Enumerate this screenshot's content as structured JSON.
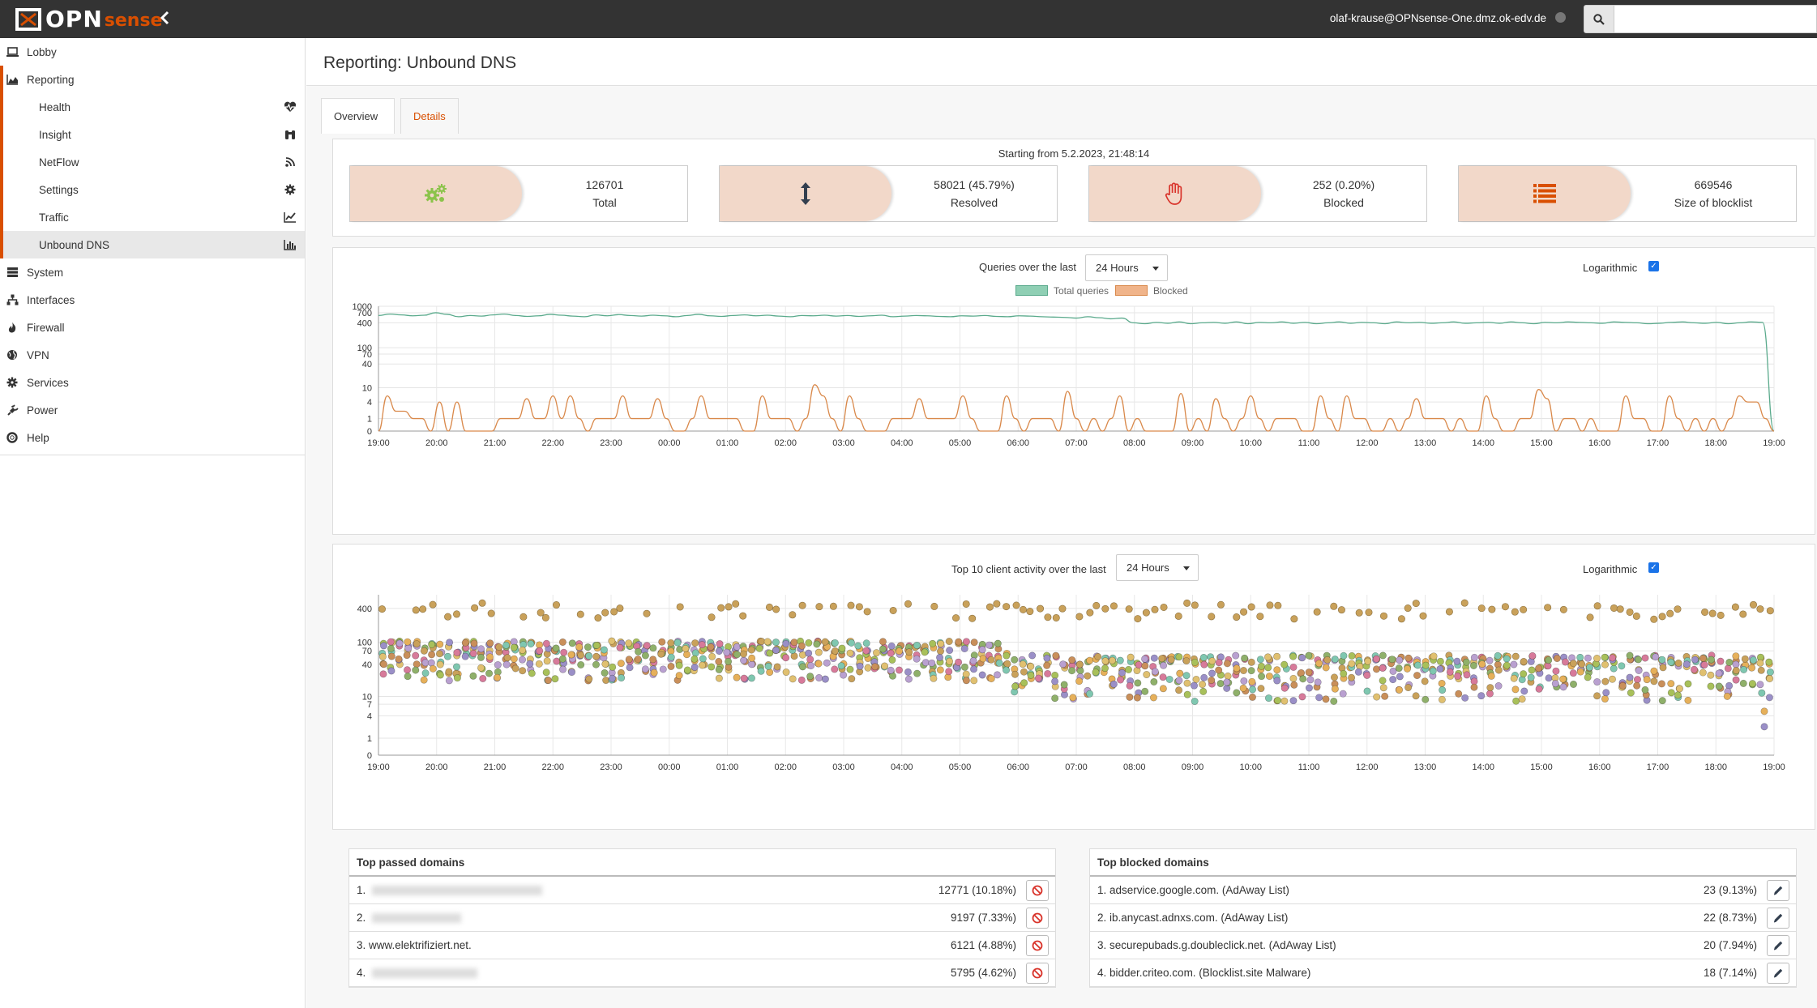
{
  "topbar": {
    "logo_opn": "OPN",
    "logo_sense": "sense",
    "user": "olaf-krause@OPNsense-One.dmz.ok-edv.de",
    "search_placeholder": ""
  },
  "sidebar": {
    "items": [
      {
        "label": "Lobby",
        "icon": "laptop-icon"
      },
      {
        "label": "Reporting",
        "icon": "area-chart-icon"
      },
      {
        "label": "System",
        "icon": "server-icon"
      },
      {
        "label": "Interfaces",
        "icon": "sitemap-icon"
      },
      {
        "label": "Firewall",
        "icon": "fire-icon"
      },
      {
        "label": "VPN",
        "icon": "globe-icon"
      },
      {
        "label": "Services",
        "icon": "cog-icon"
      },
      {
        "label": "Power",
        "icon": "plug-icon"
      },
      {
        "label": "Help",
        "icon": "life-ring-icon"
      }
    ],
    "reporting_sub": [
      {
        "label": "Health",
        "icon": "heartbeat-icon"
      },
      {
        "label": "Insight",
        "icon": "binoculars-icon"
      },
      {
        "label": "NetFlow",
        "icon": "rss-icon"
      },
      {
        "label": "Settings",
        "icon": "gear-icon"
      },
      {
        "label": "Traffic",
        "icon": "line-chart-icon"
      },
      {
        "label": "Unbound DNS",
        "icon": "bar-chart-icon"
      }
    ]
  },
  "page": {
    "title": "Reporting: Unbound DNS",
    "tabs": {
      "overview": "Overview",
      "details": "Details"
    }
  },
  "stats": {
    "starting_from": "Starting from 5.2.2023, 21:48:14",
    "boxes": [
      {
        "value": "126701",
        "label": "Total",
        "icon": "cogs-icon",
        "icon_color": "#8bc34a"
      },
      {
        "value": "58021 (45.79%)",
        "label": "Resolved",
        "icon": "arrows-v-icon",
        "icon_color": "#333f4f"
      },
      {
        "value": "252 (0.20%)",
        "label": "Blocked",
        "icon": "hand-stop-icon",
        "icon_color": "#d9342b"
      },
      {
        "value": "669546",
        "label": "Size of blocklist",
        "icon": "list-icon",
        "icon_color": "#d94f00"
      }
    ]
  },
  "queries_chart": {
    "label": "Queries over the last",
    "period": "24 Hours",
    "log_label": "Logarithmic",
    "legend": [
      {
        "name": "Total queries",
        "color": "#8fcfb4"
      },
      {
        "name": "Blocked",
        "color": "#f0b48a"
      }
    ]
  },
  "clients_chart": {
    "label": "Top 10 client activity over the last",
    "period": "24 Hours",
    "log_label": "Logarithmic"
  },
  "chart_data": [
    {
      "type": "line",
      "x_ticks": [
        "19:00",
        "20:00",
        "21:00",
        "22:00",
        "23:00",
        "00:00",
        "01:00",
        "02:00",
        "03:00",
        "04:00",
        "05:00",
        "06:00",
        "07:00",
        "08:00",
        "09:00",
        "10:00",
        "11:00",
        "12:00",
        "13:00",
        "14:00",
        "15:00",
        "16:00",
        "17:00",
        "18:00",
        "19:00"
      ],
      "y_ticks": [
        "0",
        "1",
        "4",
        "10",
        "40",
        "70",
        "100",
        "400",
        "700",
        "1000"
      ],
      "y_scale": "log",
      "series": [
        {
          "name": "Total queries",
          "color": "#5aaa8c",
          "values": [
            600,
            650,
            620,
            590,
            610,
            700,
            640,
            560,
            600,
            580,
            620,
            650,
            600,
            570,
            590,
            640,
            610,
            580,
            560,
            620,
            590,
            630,
            600,
            580,
            610,
            590,
            560,
            600,
            640,
            590,
            570,
            600,
            620,
            590,
            610,
            580,
            560,
            600,
            590,
            610,
            580,
            600,
            570,
            590,
            610,
            560,
            580,
            600,
            590,
            570,
            560,
            590,
            580,
            600,
            570,
            560,
            590,
            580,
            560,
            550,
            540,
            520,
            560,
            530,
            500,
            520,
            400,
            380,
            410,
            390,
            420,
            380,
            400,
            410,
            390,
            420,
            380,
            410,
            400,
            420,
            390,
            410,
            380,
            400,
            420,
            390,
            410,
            400,
            380,
            420,
            400,
            410,
            390,
            400,
            420,
            390,
            400,
            410,
            390,
            420,
            400,
            380,
            410,
            400,
            420,
            410,
            400,
            390,
            420,
            410,
            400,
            380,
            390,
            410,
            420,
            400,
            390,
            410,
            380,
            400,
            420,
            410,
            0
          ]
        },
        {
          "name": "Blocked",
          "color": "#d9894b",
          "values": [
            0,
            6,
            2,
            2,
            1,
            1,
            0,
            4,
            0,
            4,
            0,
            0,
            0,
            0,
            1,
            1,
            1,
            5,
            1,
            1,
            6,
            1,
            6,
            1,
            0,
            1,
            1,
            1,
            6,
            1,
            1,
            1,
            5,
            1,
            0,
            0,
            1,
            6,
            1,
            1,
            1,
            1,
            0,
            0,
            6,
            1,
            1,
            1,
            0,
            1,
            12,
            6,
            1,
            0,
            6,
            1,
            0,
            0,
            0,
            1,
            1,
            1,
            5,
            1,
            1,
            1,
            1,
            6,
            1,
            0,
            0,
            0,
            6,
            1,
            0,
            1,
            1,
            1,
            0,
            8,
            1,
            0,
            1,
            0,
            1,
            6,
            0,
            1,
            0,
            0,
            0,
            0,
            7,
            0,
            1,
            0,
            5,
            1,
            0,
            1,
            6,
            1,
            0,
            1,
            1,
            1,
            0,
            0,
            6,
            1,
            0,
            6,
            1,
            1,
            0,
            0,
            1,
            0,
            1,
            5,
            1,
            1,
            1,
            0,
            1,
            0,
            0,
            6,
            1,
            0,
            0,
            1,
            1,
            9,
            5,
            0,
            1,
            1,
            0,
            1,
            0,
            0,
            0,
            6,
            1,
            1,
            0,
            0,
            6,
            1,
            0,
            1,
            0,
            1,
            0,
            1,
            6,
            4,
            4,
            1,
            0
          ]
        }
      ]
    },
    {
      "type": "scatter",
      "x_ticks": [
        "19:00",
        "20:00",
        "21:00",
        "22:00",
        "23:00",
        "00:00",
        "01:00",
        "02:00",
        "03:00",
        "04:00",
        "05:00",
        "06:00",
        "07:00",
        "08:00",
        "09:00",
        "10:00",
        "11:00",
        "12:00",
        "13:00",
        "14:00",
        "15:00",
        "16:00",
        "17:00",
        "18:00",
        "19:00"
      ],
      "y_ticks": [
        "0",
        "1",
        "4",
        "7",
        "10",
        "40",
        "70",
        "100",
        "400"
      ],
      "y_scale": "log",
      "series_colors": [
        "#c9a15a",
        "#7fc7b0",
        "#a8c05a",
        "#e0c070",
        "#9a8fc7",
        "#d77a9a",
        "#c98f5a",
        "#8fb06a",
        "#b9a0d0",
        "#e6b05a"
      ]
    }
  ],
  "top_passed": {
    "title": "Top passed domains",
    "rows": [
      {
        "rank": "1.",
        "domain": "",
        "blurred": true,
        "blur_w": 210,
        "count": "12771 (10.18%)"
      },
      {
        "rank": "2.",
        "domain": "",
        "blurred": true,
        "blur_w": 110,
        "count": "9197 (7.33%)"
      },
      {
        "rank": "3.",
        "domain": "www.elektrifiziert.net.",
        "blurred": false,
        "blur_w": 0,
        "count": "6121 (4.88%)"
      },
      {
        "rank": "4.",
        "domain": "",
        "blurred": true,
        "blur_w": 130,
        "count": "5795 (4.62%)"
      }
    ]
  },
  "top_blocked": {
    "title": "Top blocked domains",
    "rows": [
      {
        "rank": "1.",
        "domain": "adservice.google.com. (AdAway List)",
        "count": "23 (9.13%)"
      },
      {
        "rank": "2.",
        "domain": "ib.anycast.adnxs.com. (AdAway List)",
        "count": "22 (8.73%)"
      },
      {
        "rank": "3.",
        "domain": "securepubads.g.doubleclick.net. (AdAway List)",
        "count": "20 (7.94%)"
      },
      {
        "rank": "4.",
        "domain": "bidder.criteo.com. (Blocklist.site Malware)",
        "count": "18 (7.14%)"
      }
    ]
  }
}
